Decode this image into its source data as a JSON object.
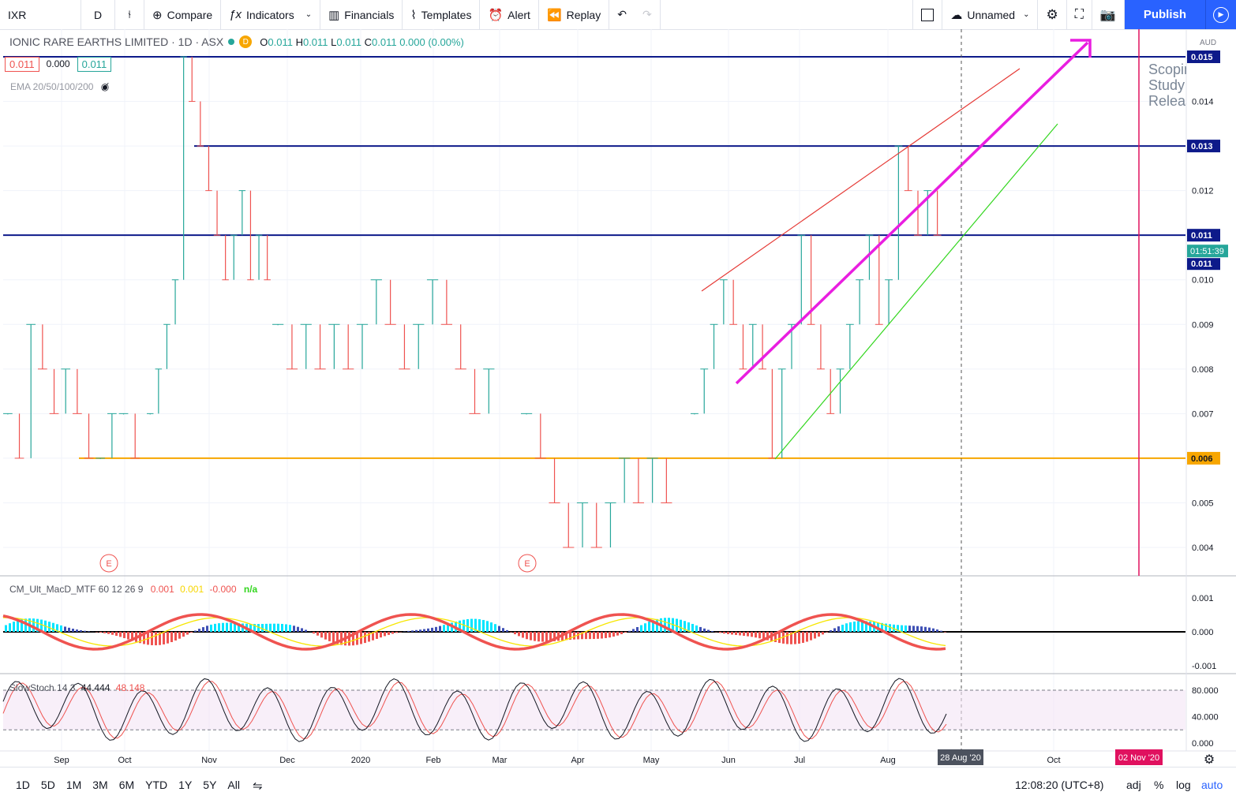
{
  "toolbar": {
    "symbol": "IXR",
    "interval": "D",
    "compare": "Compare",
    "indicators": "Indicators",
    "financials": "Financials",
    "templates": "Templates",
    "alert": "Alert",
    "replay": "Replay",
    "layout_name": "Unnamed",
    "publish": "Publish"
  },
  "legend": {
    "title": "IONIC RARE EARTHS LIMITED · 1D · ASX",
    "badge": "D",
    "ohlc": {
      "o": "0.011",
      "h": "0.011",
      "l": "0.011",
      "c": "0.011",
      "chg": "0.000 (0.00%)"
    },
    "bid": "0.011",
    "spread": "0.000",
    "ask": "0.011",
    "ema": "EMA 20/50/100/200"
  },
  "chart_data": {
    "type": "bar",
    "currency": "AUD",
    "ylim": [
      0.0035,
      0.0155
    ],
    "y_ticks": [
      "0.004",
      "0.005",
      "0.006",
      "0.007",
      "0.008",
      "0.009",
      "0.010",
      "0.011",
      "0.012",
      "0.013",
      "0.014",
      "0.015"
    ],
    "x_ticks": [
      "Sep",
      "Oct",
      "Nov",
      "Dec",
      "2020",
      "Feb",
      "Mar",
      "Apr",
      "May",
      "Jun",
      "Jul",
      "Aug",
      "Oct"
    ],
    "price_labels": [
      {
        "value": 0.015,
        "text": "0.015"
      },
      {
        "value": 0.013,
        "text": "0.013"
      },
      {
        "value": 0.011,
        "text": "0.011"
      },
      {
        "value": 0.006,
        "text": "0.006"
      }
    ],
    "last_price": "0.011",
    "countdown": "01:51:39",
    "crosshair_date": "28 Aug '20",
    "event_date": "02 Nov '20",
    "earnings_marker": "E",
    "annotation_text": [
      "Scoping",
      "Study",
      "Release"
    ],
    "daily_closes_segments": [
      {
        "from": "Aug 2019",
        "values": [
          0.007,
          0.006,
          0.009,
          0.008,
          0.007,
          0.008,
          0.007,
          0.006,
          0.006,
          0.007,
          0.007,
          0.006
        ]
      },
      {
        "from": "Oct 2019",
        "values": [
          0.007,
          0.008,
          0.009,
          0.01,
          0.015,
          0.014,
          0.013,
          0.012,
          0.011,
          0.01,
          0.011,
          0.012,
          0.01,
          0.011,
          0.01
        ]
      },
      {
        "from": "Dec 2019",
        "values": [
          0.009,
          0.008,
          0.009,
          0.008,
          0.009,
          0.008,
          0.009,
          0.01,
          0.009,
          0.008,
          0.009,
          0.01,
          0.009,
          0.008,
          0.007,
          0.008
        ]
      },
      {
        "from": "Mar 2020",
        "values": [
          0.007,
          0.006,
          0.005,
          0.004,
          0.005,
          0.004,
          0.005,
          0.006,
          0.005,
          0.006,
          0.005
        ]
      },
      {
        "from": "May 2020",
        "values": [
          0.007,
          0.008,
          0.009,
          0.01,
          0.009,
          0.008,
          0.009,
          0.008,
          0.006,
          0.008,
          0.009,
          0.011,
          0.009,
          0.008,
          0.007,
          0.008,
          0.009,
          0.01,
          0.011,
          0.009,
          0.01,
          0.013,
          0.012,
          0.011,
          0.012,
          0.011
        ]
      }
    ]
  },
  "indicators": {
    "macd": {
      "name": "CM_Ult_MacD_MTF 60 12 26 9",
      "v1": "0.001",
      "v2": "0.001",
      "v3": "-0.000",
      "v4": "n/a",
      "ticks": [
        "0.001",
        "0.000",
        "-0.001"
      ]
    },
    "stoch": {
      "name": "SlowStoch 14 3",
      "k": "44.444",
      "d": "48.148",
      "ticks": [
        "80.000",
        "40.000",
        "0.000"
      ]
    }
  },
  "bottom": {
    "ranges": [
      "1D",
      "5D",
      "1M",
      "3M",
      "6M",
      "YTD",
      "1Y",
      "5Y",
      "All"
    ],
    "time": "12:08:20 (UTC+8)",
    "adj": "adj",
    "pct": "%",
    "log": "log",
    "auto": "auto"
  },
  "colors": {
    "up": "#26a69a",
    "down": "#ef5350",
    "navy": "#0d1a8a",
    "orange": "#f7a600",
    "magenta": "#e91ee0",
    "red_line": "#e53935",
    "green_line": "#33d61f"
  }
}
